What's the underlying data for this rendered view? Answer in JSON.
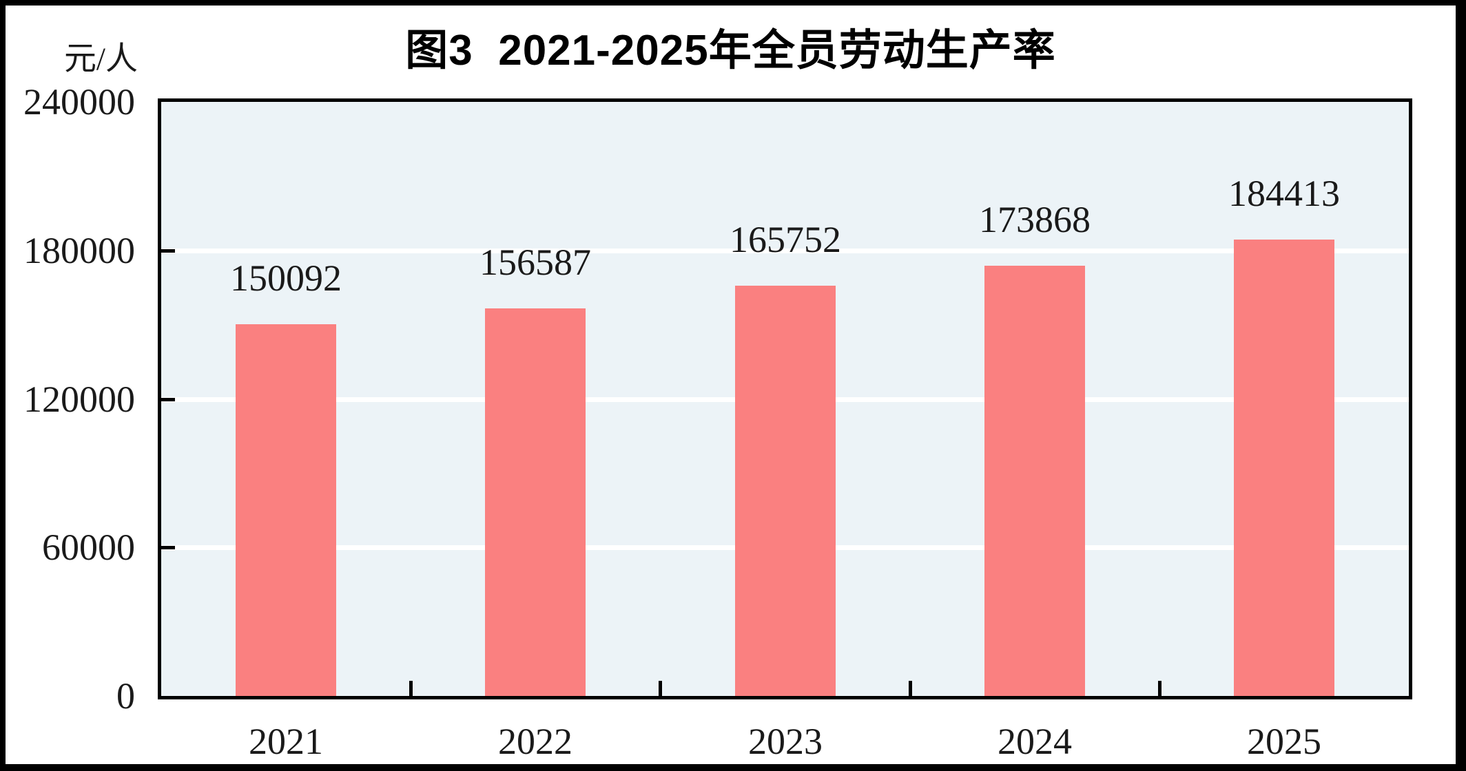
{
  "figure": {
    "title": "图3  2021-2025年全员劳动生产率",
    "y_unit": "元/人"
  },
  "chart_data": {
    "type": "bar",
    "title": "图3 2021-2025年全员劳动生产率",
    "xlabel": "",
    "ylabel": "元/人",
    "categories": [
      "2021",
      "2022",
      "2023",
      "2024",
      "2025"
    ],
    "values": [
      150092,
      156587,
      165752,
      173868,
      184413
    ],
    "data_labels": [
      "150092",
      "156587",
      "165752",
      "173868",
      "184413"
    ],
    "ylim": [
      0,
      240000
    ],
    "yticks": [
      240000,
      180000,
      120000,
      60000,
      0
    ],
    "grid": "horizontal-white-lines",
    "legend": "none",
    "colors": {
      "bar": "#FA8080",
      "plot_background": "#ECF3F7",
      "gridline": "#FFFFFF",
      "axis": "#000000",
      "text": "#1A1A1A"
    }
  }
}
